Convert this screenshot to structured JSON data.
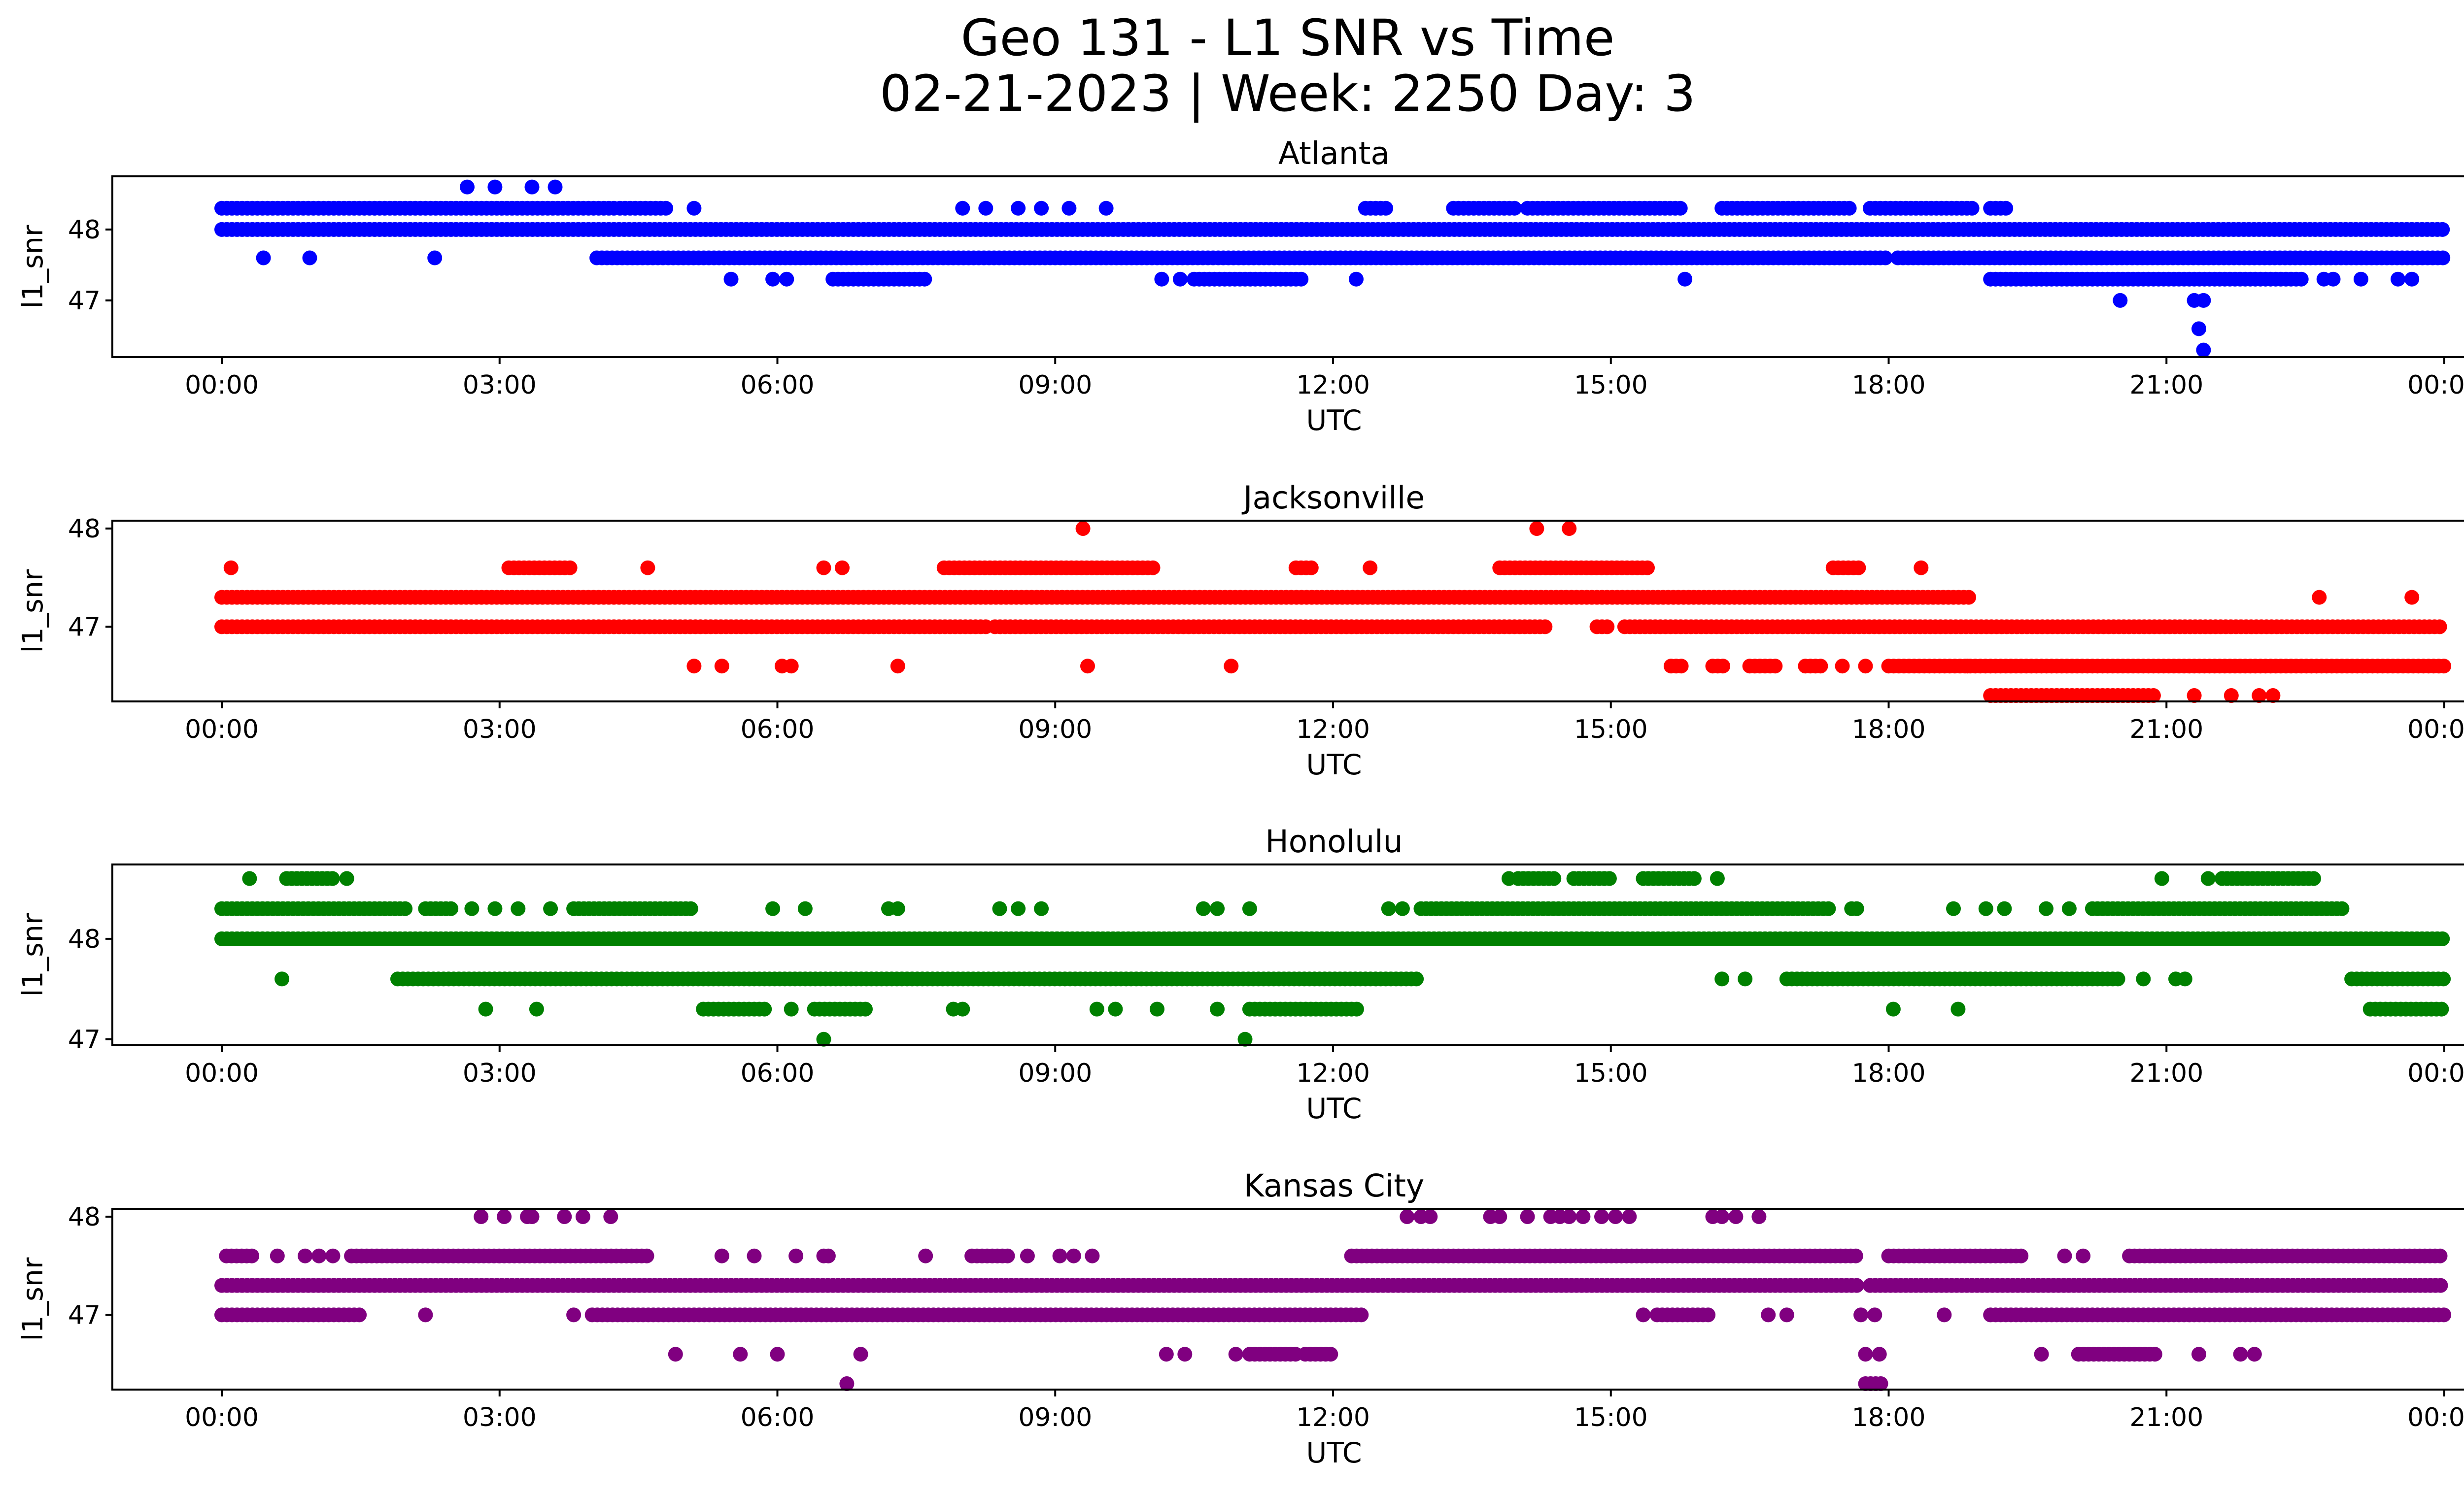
{
  "title_line1": "Geo 131 - L1 SNR vs Time",
  "title_line2": "02-21-2023 | Week: 2250 Day: 3",
  "chart_data": [
    {
      "type": "scatter",
      "title": "Atlanta",
      "xlabel": "UTC",
      "ylabel": "l1_snr",
      "color": "#0000ff",
      "xlim": [
        0,
        24
      ],
      "ylim": [
        46.2,
        48.75
      ],
      "xticks": [
        "00:00",
        "03:00",
        "06:00",
        "09:00",
        "12:00",
        "15:00",
        "18:00",
        "21:00",
        "00:00"
      ],
      "yticks": [
        {
          "value": 47,
          "label": "47"
        },
        {
          "value": 48,
          "label": "48"
        }
      ],
      "bands": [
        {
          "y": 48.3,
          "ranges": [
            [
              0.0,
              4.25
            ],
            [
              4.3,
              4.8
            ],
            [
              12.35,
              12.6
            ],
            [
              13.3,
              14.0
            ],
            [
              14.1,
              15.8
            ],
            [
              16.2,
              17.6
            ],
            [
              17.8,
              18.9
            ],
            [
              19.1,
              19.3
            ]
          ]
        },
        {
          "y": 48.0,
          "ranges": [
            [
              0.0,
              24.0
            ]
          ]
        },
        {
          "y": 47.6,
          "ranges": [
            [
              4.05,
              18.0
            ],
            [
              18.1,
              24.0
            ]
          ]
        },
        {
          "y": 47.3,
          "ranges": [
            [
              6.6,
              7.6
            ],
            [
              10.5,
              11.7
            ],
            [
              19.1,
              22.5
            ]
          ]
        }
      ],
      "points": [
        [
          2.65,
          48.6
        ],
        [
          2.95,
          48.6
        ],
        [
          3.35,
          48.6
        ],
        [
          3.6,
          48.6
        ],
        [
          5.1,
          48.3
        ],
        [
          8.0,
          48.3
        ],
        [
          8.25,
          48.3
        ],
        [
          8.6,
          48.3
        ],
        [
          8.85,
          48.3
        ],
        [
          9.15,
          48.3
        ],
        [
          9.55,
          48.3
        ],
        [
          0.45,
          47.6
        ],
        [
          0.95,
          47.6
        ],
        [
          2.3,
          47.6
        ],
        [
          5.5,
          47.3
        ],
        [
          5.95,
          47.3
        ],
        [
          6.1,
          47.3
        ],
        [
          10.15,
          47.3
        ],
        [
          10.35,
          47.3
        ],
        [
          12.25,
          47.3
        ],
        [
          15.8,
          47.3
        ],
        [
          20.5,
          47.0
        ],
        [
          21.3,
          47.0
        ],
        [
          21.4,
          47.0
        ],
        [
          21.35,
          46.6
        ],
        [
          21.4,
          46.3
        ],
        [
          22.7,
          47.3
        ],
        [
          22.8,
          47.3
        ],
        [
          23.1,
          47.3
        ],
        [
          23.5,
          47.3
        ],
        [
          23.65,
          47.3
        ]
      ]
    },
    {
      "type": "scatter",
      "title": "Jacksonville",
      "xlabel": "UTC",
      "ylabel": "l1_snr",
      "color": "#ff0000",
      "xlim": [
        0,
        24
      ],
      "ylim": [
        46.24,
        48.08
      ],
      "xticks": [
        "00:00",
        "03:00",
        "06:00",
        "09:00",
        "12:00",
        "15:00",
        "18:00",
        "21:00",
        "00:00"
      ],
      "yticks": [
        {
          "value": 47,
          "label": "47"
        },
        {
          "value": 48,
          "label": "48"
        }
      ],
      "bands": [
        {
          "y": 47.6,
          "ranges": [
            [
              3.1,
              3.8
            ],
            [
              7.8,
              10.1
            ],
            [
              11.6,
              11.8
            ],
            [
              13.8,
              15.4
            ],
            [
              17.4,
              17.7
            ]
          ]
        },
        {
          "y": 47.3,
          "ranges": [
            [
              0.0,
              18.9
            ]
          ]
        },
        {
          "y": 47.0,
          "ranges": [
            [
              0.0,
              8.3
            ],
            [
              8.35,
              14.3
            ],
            [
              14.85,
              15.0
            ],
            [
              15.15,
              24.0
            ]
          ]
        },
        {
          "y": 46.6,
          "ranges": [
            [
              18.0,
              24.0
            ],
            [
              15.65,
              15.8
            ],
            [
              16.1,
              16.25
            ],
            [
              16.5,
              16.8
            ],
            [
              17.1,
              17.3
            ]
          ]
        },
        {
          "y": 46.3,
          "ranges": [
            [
              19.1,
              20.9
            ]
          ]
        }
      ],
      "points": [
        [
          0.1,
          47.6
        ],
        [
          4.6,
          47.6
        ],
        [
          6.5,
          47.6
        ],
        [
          6.7,
          47.6
        ],
        [
          12.4,
          47.6
        ],
        [
          18.35,
          47.6
        ],
        [
          9.3,
          48.0
        ],
        [
          14.2,
          48.0
        ],
        [
          14.55,
          48.0
        ],
        [
          5.1,
          46.6
        ],
        [
          5.4,
          46.6
        ],
        [
          6.05,
          46.6
        ],
        [
          6.15,
          46.6
        ],
        [
          7.3,
          46.6
        ],
        [
          9.35,
          46.6
        ],
        [
          10.9,
          46.6
        ],
        [
          17.5,
          46.6
        ],
        [
          17.75,
          46.6
        ],
        [
          21.3,
          46.3
        ],
        [
          21.7,
          46.3
        ],
        [
          22.0,
          46.3
        ],
        [
          22.15,
          46.3
        ],
        [
          22.65,
          47.3
        ],
        [
          23.65,
          47.3
        ],
        [
          18.85,
          46.6
        ]
      ]
    },
    {
      "type": "scatter",
      "title": "Honolulu",
      "xlabel": "UTC",
      "ylabel": "l1_snr",
      "color": "#008000",
      "xlim": [
        0,
        24
      ],
      "ylim": [
        46.94,
        48.74
      ],
      "xticks": [
        "00:00",
        "03:00",
        "06:00",
        "09:00",
        "12:00",
        "15:00",
        "18:00",
        "21:00",
        "00:00"
      ],
      "yticks": [
        {
          "value": 47,
          "label": "47"
        },
        {
          "value": 48,
          "label": "48"
        }
      ],
      "bands": [
        {
          "y": 48.6,
          "ranges": [
            [
              0.7,
              1.2
            ],
            [
              14.0,
              14.4
            ],
            [
              14.6,
              15.0
            ],
            [
              15.35,
              15.9
            ],
            [
              21.6,
              22.6
            ]
          ]
        },
        {
          "y": 48.3,
          "ranges": [
            [
              0.0,
              2.0
            ],
            [
              2.2,
              2.5
            ],
            [
              3.8,
              5.1
            ],
            [
              12.95,
              17.35
            ],
            [
              17.6,
              17.7
            ],
            [
              20.2,
              22.9
            ]
          ]
        },
        {
          "y": 48.0,
          "ranges": [
            [
              0.0,
              24.0
            ]
          ]
        },
        {
          "y": 47.6,
          "ranges": [
            [
              1.9,
              12.95
            ],
            [
              16.9,
              20.5
            ],
            [
              23.0,
              24.0
            ]
          ]
        },
        {
          "y": 47.3,
          "ranges": [
            [
              5.2,
              5.9
            ],
            [
              6.4,
              7.0
            ],
            [
              11.1,
              12.3
            ],
            [
              23.2,
              24.0
            ]
          ]
        }
      ],
      "points": [
        [
          0.3,
          48.6
        ],
        [
          1.35,
          48.6
        ],
        [
          13.9,
          48.6
        ],
        [
          16.15,
          48.6
        ],
        [
          20.95,
          48.6
        ],
        [
          21.45,
          48.6
        ],
        [
          2.7,
          48.3
        ],
        [
          2.95,
          48.3
        ],
        [
          3.2,
          48.3
        ],
        [
          3.55,
          48.3
        ],
        [
          5.95,
          48.3
        ],
        [
          6.3,
          48.3
        ],
        [
          7.2,
          48.3
        ],
        [
          7.3,
          48.3
        ],
        [
          8.4,
          48.3
        ],
        [
          8.6,
          48.3
        ],
        [
          8.85,
          48.3
        ],
        [
          10.6,
          48.3
        ],
        [
          10.75,
          48.3
        ],
        [
          11.1,
          48.3
        ],
        [
          12.6,
          48.3
        ],
        [
          12.75,
          48.3
        ],
        [
          18.7,
          48.3
        ],
        [
          19.05,
          48.3
        ],
        [
          19.25,
          48.3
        ],
        [
          19.7,
          48.3
        ],
        [
          19.95,
          48.3
        ],
        [
          0.65,
          47.6
        ],
        [
          16.2,
          47.6
        ],
        [
          16.45,
          47.6
        ],
        [
          20.75,
          47.6
        ],
        [
          21.1,
          47.6
        ],
        [
          21.2,
          47.6
        ],
        [
          2.85,
          47.3
        ],
        [
          3.4,
          47.3
        ],
        [
          6.15,
          47.3
        ],
        [
          7.9,
          47.3
        ],
        [
          8.0,
          47.3
        ],
        [
          9.45,
          47.3
        ],
        [
          9.65,
          47.3
        ],
        [
          10.1,
          47.3
        ],
        [
          10.75,
          47.3
        ],
        [
          18.05,
          47.3
        ],
        [
          18.75,
          47.3
        ],
        [
          6.5,
          47.0
        ],
        [
          11.05,
          47.0
        ]
      ]
    },
    {
      "type": "scatter",
      "title": "Kansas City",
      "xlabel": "UTC",
      "ylabel": "l1_snr",
      "color": "#800080",
      "xlim": [
        0,
        24
      ],
      "ylim": [
        46.24,
        48.08
      ],
      "xticks": [
        "00:00",
        "03:00",
        "06:00",
        "09:00",
        "12:00",
        "15:00",
        "18:00",
        "21:00",
        "00:00"
      ],
      "yticks": [
        {
          "value": 47,
          "label": "47"
        },
        {
          "value": 48,
          "label": "48"
        }
      ],
      "bands": [
        {
          "y": 47.6,
          "ranges": [
            [
              0.05,
              0.35
            ],
            [
              1.4,
              4.6
            ],
            [
              8.1,
              8.5
            ],
            [
              12.2,
              17.65
            ],
            [
              18.0,
              19.45
            ],
            [
              20.6,
              24.0
            ]
          ]
        },
        {
          "y": 47.3,
          "ranges": [
            [
              0.0,
              17.7
            ],
            [
              17.8,
              24.0
            ]
          ]
        },
        {
          "y": 47.0,
          "ranges": [
            [
              0.0,
              1.5
            ],
            [
              4.0,
              12.35
            ],
            [
              19.1,
              24.0
            ],
            [
              15.5,
              16.1
            ]
          ]
        },
        {
          "y": 46.6,
          "ranges": [
            [
              11.1,
              11.6
            ],
            [
              11.7,
              12.0
            ],
            [
              20.05,
              20.9
            ]
          ]
        },
        {
          "y": 46.3,
          "ranges": [
            [
              17.75,
              17.95
            ]
          ]
        }
      ],
      "points": [
        [
          2.8,
          48.0
        ],
        [
          3.05,
          48.0
        ],
        [
          3.3,
          48.0
        ],
        [
          3.35,
          48.0
        ],
        [
          3.7,
          48.0
        ],
        [
          3.9,
          48.0
        ],
        [
          4.2,
          48.0
        ],
        [
          12.8,
          48.0
        ],
        [
          12.95,
          48.0
        ],
        [
          13.05,
          48.0
        ],
        [
          13.7,
          48.0
        ],
        [
          13.8,
          48.0
        ],
        [
          14.1,
          48.0
        ],
        [
          14.35,
          48.0
        ],
        [
          14.45,
          48.0
        ],
        [
          14.55,
          48.0
        ],
        [
          14.7,
          48.0
        ],
        [
          14.9,
          48.0
        ],
        [
          15.05,
          48.0
        ],
        [
          15.2,
          48.0
        ],
        [
          16.1,
          48.0
        ],
        [
          16.2,
          48.0
        ],
        [
          16.35,
          48.0
        ],
        [
          16.6,
          48.0
        ],
        [
          0.6,
          47.6
        ],
        [
          0.9,
          47.6
        ],
        [
          1.05,
          47.6
        ],
        [
          1.2,
          47.6
        ],
        [
          5.4,
          47.6
        ],
        [
          5.75,
          47.6
        ],
        [
          6.2,
          47.6
        ],
        [
          6.5,
          47.6
        ],
        [
          6.55,
          47.6
        ],
        [
          7.6,
          47.6
        ],
        [
          8.7,
          47.6
        ],
        [
          9.05,
          47.6
        ],
        [
          9.2,
          47.6
        ],
        [
          9.4,
          47.6
        ],
        [
          19.9,
          47.6
        ],
        [
          20.1,
          47.6
        ],
        [
          2.2,
          47.0
        ],
        [
          3.8,
          47.0
        ],
        [
          15.35,
          47.0
        ],
        [
          16.7,
          47.0
        ],
        [
          16.9,
          47.0
        ],
        [
          17.7,
          47.0
        ],
        [
          17.85,
          47.0
        ],
        [
          18.6,
          47.0
        ],
        [
          4.9,
          46.6
        ],
        [
          5.6,
          46.6
        ],
        [
          6.0,
          46.6
        ],
        [
          6.9,
          46.6
        ],
        [
          10.2,
          46.6
        ],
        [
          10.4,
          46.6
        ],
        [
          10.95,
          46.6
        ],
        [
          19.65,
          46.6
        ],
        [
          21.35,
          46.6
        ],
        [
          21.8,
          46.6
        ],
        [
          21.95,
          46.6
        ],
        [
          6.75,
          46.3
        ],
        [
          17.75,
          46.6
        ],
        [
          17.9,
          46.6
        ]
      ]
    }
  ]
}
